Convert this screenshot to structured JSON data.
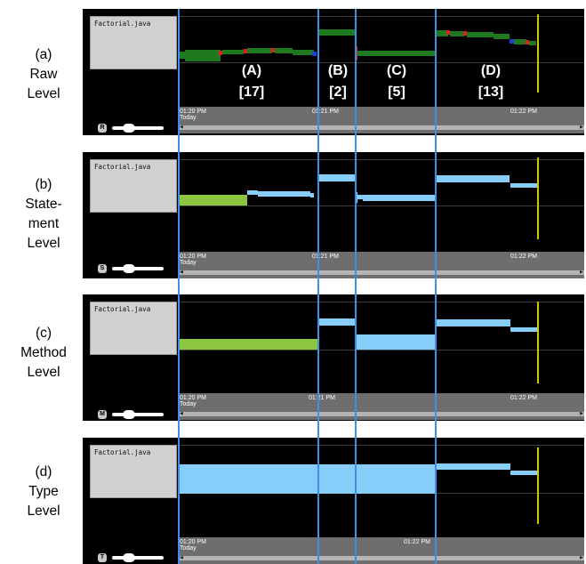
{
  "file_name": "Factorial.java",
  "levels": [
    {
      "key": "raw",
      "label_lines": [
        "(a)",
        "Raw",
        "Level"
      ],
      "zoom_badge": "R",
      "timestamps": [
        {
          "text": "01:20 PM"
        },
        {
          "text": "01:21 PM"
        },
        {
          "text": "01:22 PM"
        }
      ],
      "date_label": "Today"
    },
    {
      "key": "statement",
      "label_lines": [
        "(b)",
        "State-",
        "ment",
        "Level"
      ],
      "zoom_badge": "S",
      "timestamps": [
        {
          "text": "01:20 PM"
        },
        {
          "text": "01:21 PM"
        },
        {
          "text": "01:22 PM"
        }
      ],
      "date_label": "Today"
    },
    {
      "key": "method",
      "label_lines": [
        "(c)",
        "Method",
        "Level"
      ],
      "zoom_badge": "M",
      "timestamps": [
        {
          "text": "01:20 PM"
        },
        {
          "text": "01:21 PM"
        },
        {
          "text": "01:22 PM"
        }
      ],
      "date_label": "Today"
    },
    {
      "key": "type",
      "label_lines": [
        "(d)",
        "Type",
        "Level"
      ],
      "zoom_badge": "T",
      "timestamps": [
        {
          "text": "01:20 PM"
        },
        {
          "text": "01:22 PM"
        }
      ],
      "date_label": "Today"
    }
  ],
  "segments": [
    {
      "name": "(A)",
      "count": "[17]"
    },
    {
      "name": "(B)",
      "count": "[2]"
    },
    {
      "name": "(C)",
      "count": "[5]"
    },
    {
      "name": "(D)",
      "count": "[13]"
    }
  ],
  "colors": {
    "edit_green": "#1f7a1f",
    "statement_lime": "#8cc63f",
    "block_blue": "#87cdf9",
    "divider_blue": "#3d8fe8",
    "cursor_yellow": "#d6c400",
    "marker_red": "#e02020",
    "marker_blue": "#1f3fe0"
  }
}
